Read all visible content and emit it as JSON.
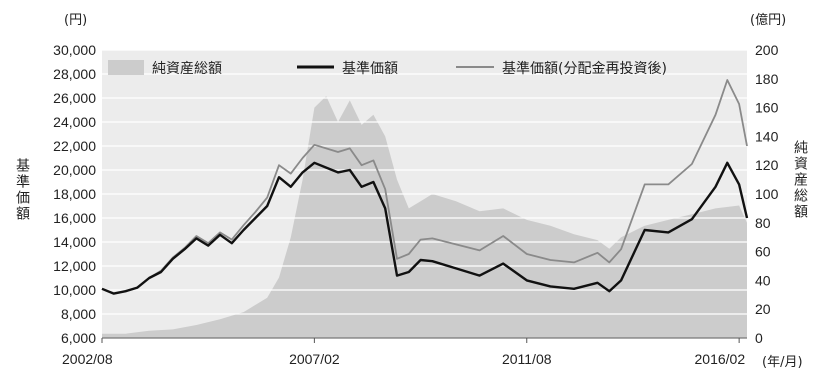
{
  "chart_data": {
    "type": "line",
    "units": {
      "left": "(円)",
      "right": "(億円)",
      "x": "(年/月)"
    },
    "ylabel_left": "基準価額",
    "ylabel_right": "純資産総額",
    "x_ticks": [
      "2002/08",
      "2007/02",
      "2011/08",
      "2016/02"
    ],
    "y_left": {
      "min": 6000,
      "max": 30000,
      "ticks": [
        "6,000",
        "8,000",
        "10,000",
        "12,000",
        "14,000",
        "16,000",
        "18,000",
        "20,000",
        "22,000",
        "24,000",
        "26,000",
        "28,000",
        "30,000"
      ]
    },
    "y_right": {
      "min": 0,
      "max": 200,
      "ticks": [
        "0",
        "20",
        "40",
        "60",
        "80",
        "100",
        "120",
        "140",
        "160",
        "180",
        "200"
      ]
    },
    "legend": [
      {
        "label": "純資産総額",
        "color": "#cccccc",
        "kind": "area"
      },
      {
        "label": "基準価額",
        "color": "#111111",
        "kind": "line"
      },
      {
        "label": "基準価額(分配金再投資後)",
        "color": "#8a8a8a",
        "kind": "line"
      }
    ],
    "x_range": [
      "2002/08",
      "2016/04"
    ],
    "series": [
      {
        "axis": "right",
        "points": [
          [
            "2002/08",
            3
          ],
          [
            "2003/02",
            3
          ],
          [
            "2003/08",
            5
          ],
          [
            "2004/02",
            6
          ],
          [
            "2004/08",
            9
          ],
          [
            "2005/02",
            13
          ],
          [
            "2005/08",
            18
          ],
          [
            "2006/02",
            28
          ],
          [
            "2006/05",
            42
          ],
          [
            "2006/08",
            70
          ],
          [
            "2006/11",
            110
          ],
          [
            "2007/02",
            160
          ],
          [
            "2007/05",
            168
          ],
          [
            "2007/08",
            150
          ],
          [
            "2007/11",
            165
          ],
          [
            "2008/02",
            148
          ],
          [
            "2008/05",
            155
          ],
          [
            "2008/08",
            140
          ],
          [
            "2008/11",
            110
          ],
          [
            "2009/02",
            90
          ],
          [
            "2009/05",
            95
          ],
          [
            "2009/08",
            100
          ],
          [
            "2010/02",
            95
          ],
          [
            "2010/08",
            88
          ],
          [
            "2011/02",
            90
          ],
          [
            "2011/08",
            82
          ],
          [
            "2012/02",
            78
          ],
          [
            "2012/08",
            72
          ],
          [
            "2013/02",
            68
          ],
          [
            "2013/05",
            62
          ],
          [
            "2013/08",
            70
          ],
          [
            "2014/02",
            78
          ],
          [
            "2014/08",
            82
          ],
          [
            "2015/02",
            86
          ],
          [
            "2015/08",
            90
          ],
          [
            "2016/02",
            92
          ],
          [
            "2016/04",
            80
          ]
        ]
      },
      {
        "axis": "left",
        "points": [
          [
            "2002/08",
            10100
          ],
          [
            "2002/11",
            9700
          ],
          [
            "2003/02",
            9900
          ],
          [
            "2003/05",
            10200
          ],
          [
            "2003/08",
            11000
          ],
          [
            "2003/11",
            11500
          ],
          [
            "2004/02",
            12600
          ],
          [
            "2004/05",
            13400
          ],
          [
            "2004/08",
            14300
          ],
          [
            "2004/11",
            13700
          ],
          [
            "2005/02",
            14600
          ],
          [
            "2005/05",
            13900
          ],
          [
            "2005/08",
            15000
          ],
          [
            "2005/11",
            16000
          ],
          [
            "2006/02",
            17000
          ],
          [
            "2006/05",
            19400
          ],
          [
            "2006/08",
            18600
          ],
          [
            "2006/11",
            19800
          ],
          [
            "2007/02",
            20600
          ],
          [
            "2007/05",
            20200
          ],
          [
            "2007/08",
            19800
          ],
          [
            "2007/11",
            20000
          ],
          [
            "2008/02",
            18600
          ],
          [
            "2008/05",
            19000
          ],
          [
            "2008/08",
            16800
          ],
          [
            "2008/11",
            11200
          ],
          [
            "2009/02",
            11500
          ],
          [
            "2009/05",
            12500
          ],
          [
            "2009/08",
            12400
          ],
          [
            "2010/02",
            11800
          ],
          [
            "2010/08",
            11200
          ],
          [
            "2011/02",
            12200
          ],
          [
            "2011/08",
            10800
          ],
          [
            "2012/02",
            10300
          ],
          [
            "2012/08",
            10100
          ],
          [
            "2013/02",
            10600
          ],
          [
            "2013/05",
            9900
          ],
          [
            "2013/08",
            10800
          ],
          [
            "2014/02",
            15000
          ],
          [
            "2014/08",
            14800
          ],
          [
            "2015/02",
            15900
          ],
          [
            "2015/08",
            18600
          ],
          [
            "2015/11",
            20600
          ],
          [
            "2016/02",
            18800
          ],
          [
            "2016/04",
            16000
          ]
        ]
      },
      {
        "axis": "left",
        "points": [
          [
            "2002/08",
            10100
          ],
          [
            "2002/11",
            9700
          ],
          [
            "2003/02",
            9900
          ],
          [
            "2003/05",
            10200
          ],
          [
            "2003/08",
            11000
          ],
          [
            "2003/11",
            11600
          ],
          [
            "2004/02",
            12700
          ],
          [
            "2004/05",
            13500
          ],
          [
            "2004/08",
            14500
          ],
          [
            "2004/11",
            13900
          ],
          [
            "2005/02",
            14800
          ],
          [
            "2005/05",
            14200
          ],
          [
            "2005/08",
            15400
          ],
          [
            "2005/11",
            16500
          ],
          [
            "2006/02",
            17700
          ],
          [
            "2006/05",
            20400
          ],
          [
            "2006/08",
            19700
          ],
          [
            "2006/11",
            21000
          ],
          [
            "2007/02",
            22100
          ],
          [
            "2007/05",
            21800
          ],
          [
            "2007/08",
            21500
          ],
          [
            "2007/11",
            21800
          ],
          [
            "2008/02",
            20400
          ],
          [
            "2008/05",
            20800
          ],
          [
            "2008/08",
            18400
          ],
          [
            "2008/11",
            12600
          ],
          [
            "2009/02",
            13000
          ],
          [
            "2009/05",
            14200
          ],
          [
            "2009/08",
            14300
          ],
          [
            "2010/02",
            13800
          ],
          [
            "2010/08",
            13300
          ],
          [
            "2011/02",
            14500
          ],
          [
            "2011/08",
            13000
          ],
          [
            "2012/02",
            12500
          ],
          [
            "2012/08",
            12300
          ],
          [
            "2013/02",
            13100
          ],
          [
            "2013/05",
            12300
          ],
          [
            "2013/08",
            13400
          ],
          [
            "2014/02",
            18800
          ],
          [
            "2014/08",
            18800
          ],
          [
            "2015/02",
            20500
          ],
          [
            "2015/08",
            24600
          ],
          [
            "2015/11",
            27500
          ],
          [
            "2016/02",
            25500
          ],
          [
            "2016/04",
            22000
          ]
        ]
      }
    ]
  }
}
